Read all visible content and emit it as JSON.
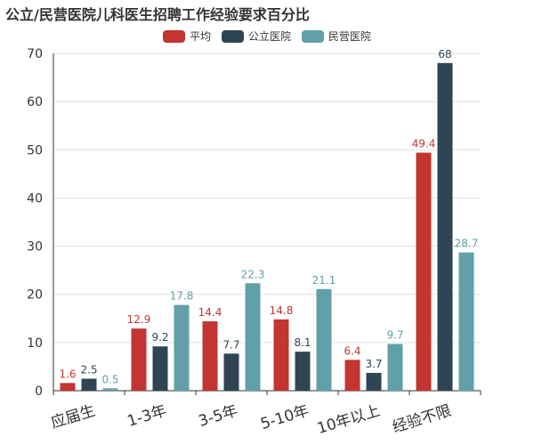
{
  "chart_data": {
    "type": "bar",
    "title": "公立/民营医院儿科医生招聘工作经验要求百分比",
    "categories": [
      "应届生",
      "1-3年",
      "3-5年",
      "5-10年",
      "10年以上",
      "经验不限"
    ],
    "series": [
      {
        "name": "平均",
        "color": "#c23531",
        "values": [
          1.6,
          12.9,
          14.4,
          14.8,
          6.4,
          49.4
        ]
      },
      {
        "name": "公立医院",
        "color": "#2f4554",
        "values": [
          2.5,
          9.2,
          7.7,
          8.1,
          3.7,
          68
        ]
      },
      {
        "name": "民营医院",
        "color": "#61a0a8",
        "values": [
          0.5,
          17.8,
          22.3,
          21.1,
          9.7,
          28.7
        ]
      }
    ],
    "ylim": [
      0,
      70
    ],
    "yticks": [
      0,
      10,
      20,
      30,
      40,
      50,
      60,
      70
    ],
    "grid": true,
    "legend_position": "top-center",
    "xlabel": "",
    "ylabel": ""
  }
}
